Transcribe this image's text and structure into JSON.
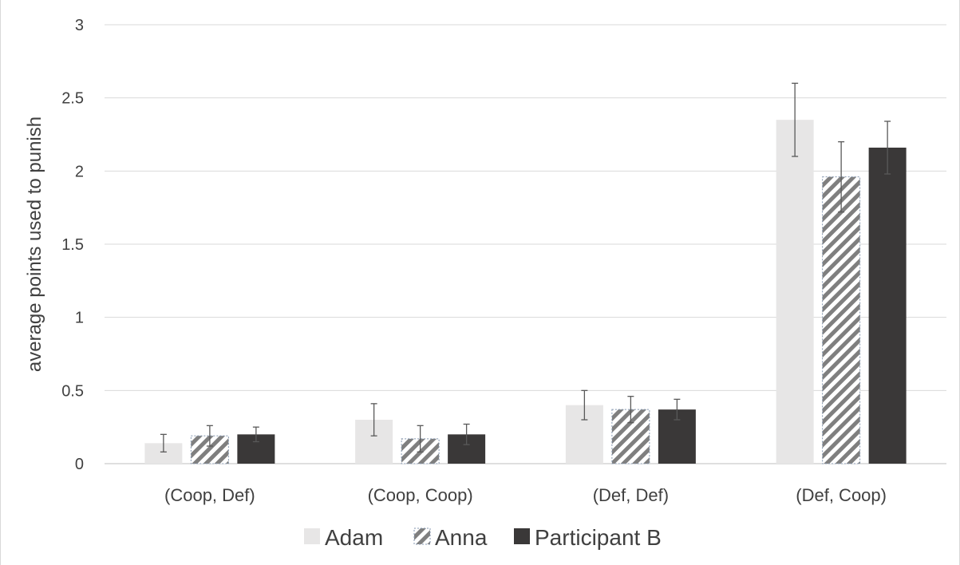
{
  "chart_data": {
    "type": "bar",
    "title": "",
    "xlabel": "",
    "ylabel": "average points used to punish",
    "ylim": [
      0,
      3
    ],
    "yticks": [
      "0",
      "0.5",
      "1",
      "1.5",
      "2",
      "2.5",
      "3"
    ],
    "grid": true,
    "legend_position": "bottom",
    "categories": [
      "(Coop, Def)",
      "(Coop, Coop)",
      "(Def, Def)",
      "(Def, Coop)"
    ],
    "series": [
      {
        "name": "Adam",
        "color": "#e7e6e6",
        "pattern": "solid",
        "values": [
          0.14,
          0.3,
          0.4,
          2.35
        ],
        "error": [
          0.06,
          0.11,
          0.1,
          0.25
        ]
      },
      {
        "name": "Anna",
        "color": "#7f7f7f",
        "pattern": "diagonal-hatch",
        "values": [
          0.19,
          0.17,
          0.37,
          1.96
        ],
        "error": [
          0.07,
          0.09,
          0.09,
          0.24
        ]
      },
      {
        "name": "Participant B",
        "color": "#3a3838",
        "pattern": "solid",
        "values": [
          0.2,
          0.2,
          0.37,
          2.16
        ],
        "error": [
          0.05,
          0.07,
          0.07,
          0.18
        ]
      }
    ]
  }
}
